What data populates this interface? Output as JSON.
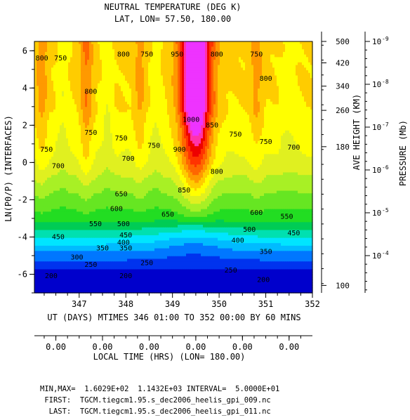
{
  "chart_data": {
    "type": "contour",
    "title": "NEUTRAL TEMPERATURE (DEG K)",
    "subtitle": "LAT, LON=  57.50,    180.00",
    "xlabel": "UT (DAYS) MTIMES 346 01:00 TO 352 00:00 BY    60 MINS",
    "ylabel": "LN(P0/P) (INTERFACES)",
    "xlim": [
      346.04,
      352.0
    ],
    "ylim": [
      -7.0,
      6.5
    ],
    "x_ticks": [
      "347",
      "348",
      "349",
      "350",
      "351",
      "352"
    ],
    "y_ticks": [
      "6",
      "4",
      "2",
      "0",
      "-2",
      "-4",
      "-6"
    ],
    "height_axis": {
      "label": "AVE HEIGHT (KM)",
      "ticks": [
        {
          "value": "500",
          "z": 6.5
        },
        {
          "value": "420",
          "z": 5.35
        },
        {
          "value": "340",
          "z": 4.1
        },
        {
          "value": "260",
          "z": 2.8
        },
        {
          "value": "180",
          "z": 0.85
        },
        {
          "value": "100",
          "z": -6.6
        }
      ]
    },
    "pressure_axis": {
      "label": "PRESSURE (Mb)",
      "ticks": [
        {
          "value": "10",
          "exp": "-9",
          "z": 6.5
        },
        {
          "value": "10",
          "exp": "-8",
          "z": 4.2
        },
        {
          "value": "10",
          "exp": "-7",
          "z": 1.9
        },
        {
          "value": "10",
          "exp": "-6",
          "z": -0.4
        },
        {
          "value": "10",
          "exp": "-5",
          "z": -2.7
        },
        {
          "value": "10",
          "exp": "-4",
          "z": -5.0
        }
      ]
    },
    "local_time_axis": {
      "label": "LOCAL TIME (HRS) (LON= 180.00)",
      "ticks": [
        "0.00",
        "0.00",
        "0.00",
        "0.00",
        "0.00",
        "0.00"
      ]
    },
    "contour_levels": [
      200,
      250,
      300,
      350,
      400,
      450,
      500,
      550,
      600,
      650,
      700,
      750,
      800,
      850,
      900,
      950,
      1000,
      1050,
      1100
    ],
    "level_colors": [
      "#0000cc",
      "#0033ee",
      "#0077ff",
      "#00bbff",
      "#00e5ff",
      "#00e0b0",
      "#00cc55",
      "#22dd22",
      "#66e622",
      "#a8f025",
      "#e0f020",
      "#ffff00",
      "#ffcc00",
      "#ff9900",
      "#ff6600",
      "#ff3300",
      "#ee0000",
      "#ff33aa",
      "#ee33ff"
    ],
    "contour_labels": [
      {
        "value": "800",
        "x": 346.2,
        "z": 5.6
      },
      {
        "value": "750",
        "x": 346.6,
        "z": 5.6
      },
      {
        "value": "800",
        "x": 347.25,
        "z": 3.8
      },
      {
        "value": "750",
        "x": 347.25,
        "z": 1.6
      },
      {
        "value": "800",
        "x": 347.95,
        "z": 5.8
      },
      {
        "value": "750",
        "x": 348.45,
        "z": 5.8
      },
      {
        "value": "750",
        "x": 347.9,
        "z": 1.3
      },
      {
        "value": "700",
        "x": 348.05,
        "z": 0.2
      },
      {
        "value": "750",
        "x": 348.6,
        "z": 0.9
      },
      {
        "value": "950",
        "x": 349.1,
        "z": 5.8
      },
      {
        "value": "1000",
        "x": 349.4,
        "z": 2.3
      },
      {
        "value": "900",
        "x": 349.15,
        "z": 0.7
      },
      {
        "value": "850",
        "x": 349.85,
        "z": 2.0
      },
      {
        "value": "800",
        "x": 349.95,
        "z": 5.8
      },
      {
        "value": "850",
        "x": 349.25,
        "z": -1.5
      },
      {
        "value": "800",
        "x": 349.95,
        "z": -0.5
      },
      {
        "value": "750",
        "x": 350.35,
        "z": 1.5
      },
      {
        "value": "750",
        "x": 350.8,
        "z": 5.8
      },
      {
        "value": "800",
        "x": 351.0,
        "z": 4.5
      },
      {
        "value": "750",
        "x": 351.0,
        "z": 1.1
      },
      {
        "value": "700",
        "x": 351.6,
        "z": 0.8
      },
      {
        "value": "750",
        "x": 346.3,
        "z": 0.7
      },
      {
        "value": "700",
        "x": 346.55,
        "z": -0.2
      },
      {
        "value": "650",
        "x": 348.9,
        "z": -2.8
      },
      {
        "value": "650",
        "x": 347.9,
        "z": -1.7
      },
      {
        "value": "600",
        "x": 347.8,
        "z": -2.5
      },
      {
        "value": "550",
        "x": 347.35,
        "z": -3.3
      },
      {
        "value": "500",
        "x": 347.95,
        "z": -3.3
      },
      {
        "value": "450",
        "x": 346.55,
        "z": -4.0
      },
      {
        "value": "450",
        "x": 348.0,
        "z": -3.9
      },
      {
        "value": "400",
        "x": 347.95,
        "z": -4.3
      },
      {
        "value": "350",
        "x": 347.5,
        "z": -4.6
      },
      {
        "value": "350",
        "x": 348.0,
        "z": -4.6
      },
      {
        "value": "300",
        "x": 346.95,
        "z": -5.1
      },
      {
        "value": "250",
        "x": 347.25,
        "z": -5.5
      },
      {
        "value": "250",
        "x": 348.45,
        "z": -5.4
      },
      {
        "value": "200",
        "x": 346.4,
        "z": -6.1
      },
      {
        "value": "200",
        "x": 348.0,
        "z": -6.1
      },
      {
        "value": "600",
        "x": 350.8,
        "z": -2.7
      },
      {
        "value": "550",
        "x": 351.45,
        "z": -2.9
      },
      {
        "value": "500",
        "x": 350.65,
        "z": -3.6
      },
      {
        "value": "450",
        "x": 351.6,
        "z": -3.8
      },
      {
        "value": "400",
        "x": 350.4,
        "z": -4.2
      },
      {
        "value": "350",
        "x": 351.0,
        "z": -4.8
      },
      {
        "value": "250",
        "x": 350.25,
        "z": -5.8
      },
      {
        "value": "200",
        "x": 350.95,
        "z": -6.3
      }
    ]
  },
  "footer": {
    "minmax": "MIN,MAX=  1.6029E+02  1.1432E+03 INTERVAL=  5.0000E+01",
    "first": " FIRST:  TGCM.tiegcm1.95.s_dec2006_heelis_gpi_009.nc",
    "last": "  LAST:  TGCM.tiegcm1.95.s_dec2006_heelis_gpi_011.nc"
  }
}
